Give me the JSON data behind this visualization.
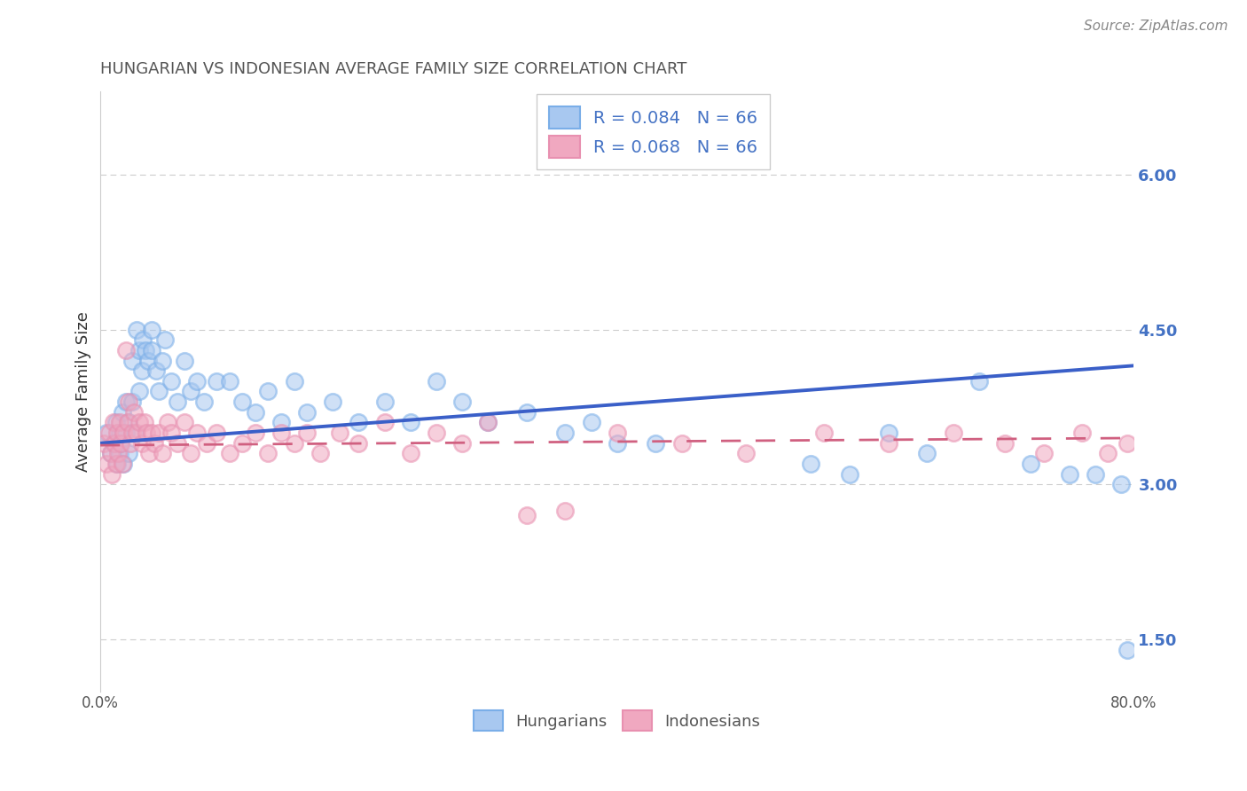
{
  "title": "HUNGARIAN VS INDONESIAN AVERAGE FAMILY SIZE CORRELATION CHART",
  "source_text": "Source: ZipAtlas.com",
  "ylabel": "Average Family Size",
  "xmin": 0.0,
  "xmax": 0.8,
  "ymin": 1.0,
  "ymax": 6.8,
  "yticks": [
    1.5,
    3.0,
    4.5,
    6.0
  ],
  "ytick_labels": [
    "1.50",
    "3.00",
    "4.50",
    "6.00"
  ],
  "right_ytick_color": "#4472c4",
  "legend_line1": "R = 0.084   N = 66",
  "legend_line2": "R = 0.068   N = 66",
  "hungarian_color": "#a8c8f0",
  "indonesian_color": "#f0a8c0",
  "hungarian_edge_color": "#7aaee8",
  "indonesian_edge_color": "#e890b0",
  "hungarian_line_color": "#3a5fc8",
  "indonesian_line_color": "#d06080",
  "background_color": "#ffffff",
  "grid_color": "#cccccc",
  "title_color": "#555555",
  "hungarian_x": [
    0.005,
    0.008,
    0.01,
    0.012,
    0.013,
    0.015,
    0.015,
    0.016,
    0.017,
    0.018,
    0.02,
    0.02,
    0.022,
    0.022,
    0.025,
    0.025,
    0.027,
    0.028,
    0.03,
    0.03,
    0.032,
    0.033,
    0.035,
    0.037,
    0.04,
    0.04,
    0.043,
    0.045,
    0.048,
    0.05,
    0.055,
    0.06,
    0.065,
    0.07,
    0.075,
    0.08,
    0.09,
    0.1,
    0.11,
    0.12,
    0.13,
    0.14,
    0.15,
    0.16,
    0.18,
    0.2,
    0.22,
    0.24,
    0.26,
    0.28,
    0.3,
    0.33,
    0.36,
    0.38,
    0.4,
    0.43,
    0.55,
    0.58,
    0.61,
    0.64,
    0.68,
    0.72,
    0.75,
    0.77,
    0.79,
    0.795
  ],
  "hungarian_y": [
    3.5,
    3.3,
    3.4,
    3.6,
    3.2,
    3.5,
    3.3,
    3.4,
    3.7,
    3.2,
    3.5,
    3.8,
    3.3,
    3.6,
    4.2,
    3.8,
    3.5,
    4.5,
    4.3,
    3.9,
    4.1,
    4.4,
    4.3,
    4.2,
    4.5,
    4.3,
    4.1,
    3.9,
    4.2,
    4.4,
    4.0,
    3.8,
    4.2,
    3.9,
    4.0,
    3.8,
    4.0,
    4.0,
    3.8,
    3.7,
    3.9,
    3.6,
    4.0,
    3.7,
    3.8,
    3.6,
    3.8,
    3.6,
    4.0,
    3.8,
    3.6,
    3.7,
    3.5,
    3.6,
    3.4,
    3.4,
    3.2,
    3.1,
    3.5,
    3.3,
    4.0,
    3.2,
    3.1,
    3.1,
    3.0,
    1.4
  ],
  "indonesian_x": [
    0.003,
    0.005,
    0.007,
    0.008,
    0.009,
    0.01,
    0.011,
    0.012,
    0.013,
    0.014,
    0.015,
    0.016,
    0.017,
    0.018,
    0.02,
    0.021,
    0.022,
    0.023,
    0.025,
    0.026,
    0.028,
    0.03,
    0.032,
    0.034,
    0.036,
    0.038,
    0.04,
    0.042,
    0.045,
    0.048,
    0.052,
    0.055,
    0.06,
    0.065,
    0.07,
    0.075,
    0.082,
    0.09,
    0.1,
    0.11,
    0.12,
    0.13,
    0.14,
    0.15,
    0.16,
    0.17,
    0.185,
    0.2,
    0.22,
    0.24,
    0.26,
    0.28,
    0.3,
    0.33,
    0.36,
    0.4,
    0.45,
    0.5,
    0.56,
    0.61,
    0.66,
    0.7,
    0.73,
    0.76,
    0.78,
    0.795
  ],
  "indonesian_y": [
    3.4,
    3.2,
    3.5,
    3.3,
    3.1,
    3.6,
    3.4,
    3.2,
    3.5,
    3.3,
    3.6,
    3.4,
    3.2,
    3.5,
    4.3,
    3.6,
    3.8,
    3.4,
    3.5,
    3.7,
    3.5,
    3.6,
    3.4,
    3.6,
    3.5,
    3.3,
    3.5,
    3.4,
    3.5,
    3.3,
    3.6,
    3.5,
    3.4,
    3.6,
    3.3,
    3.5,
    3.4,
    3.5,
    3.3,
    3.4,
    3.5,
    3.3,
    3.5,
    3.4,
    3.5,
    3.3,
    3.5,
    3.4,
    3.6,
    3.3,
    3.5,
    3.4,
    3.6,
    2.7,
    2.75,
    3.5,
    3.4,
    3.3,
    3.5,
    3.4,
    3.5,
    3.4,
    3.3,
    3.5,
    3.3,
    3.4
  ],
  "hungarian_trend_x": [
    0.0,
    0.8
  ],
  "hungarian_trend_y": [
    3.4,
    4.15
  ],
  "indonesian_trend_x": [
    0.0,
    0.8
  ],
  "indonesian_trend_y": [
    3.38,
    3.45
  ],
  "marker_size": 180,
  "marker_alpha": 0.55,
  "marker_linewidth": 1.8
}
